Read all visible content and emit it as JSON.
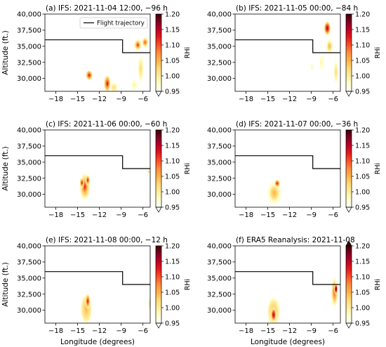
{
  "figure": {
    "xlabel": "Longitude (degrees)",
    "ylabel": "Altitude (ft.)",
    "colorbar_label": "RHi",
    "legend_label": "Flight trajectory"
  },
  "colors": {
    "trajectory": "#000000",
    "colormap": [
      "#ffffff",
      "#ffffcc",
      "#ffeda0",
      "#fed976",
      "#feb24c",
      "#fd8d3c",
      "#fc4e2a",
      "#e31a1c",
      "#bd0026",
      "#800026",
      "#3d0000"
    ]
  },
  "chart_data": [
    {
      "type": "heatmap",
      "title": "(a) IFS: 2021-11-04 12:00, −96 h",
      "xlim": [
        -19.5,
        -5
      ],
      "ylim": [
        28000,
        40000
      ],
      "xticks": [
        -18,
        -15,
        -12,
        -9,
        -6
      ],
      "yticks": [
        30000,
        32500,
        35000,
        37500,
        40000
      ],
      "colorbar": {
        "min": 0.95,
        "max": 1.2,
        "ticks": [
          0.95,
          1.0,
          1.05,
          1.1,
          1.15,
          1.2
        ],
        "extend": "min"
      },
      "legend": "Flight trajectory",
      "trajectory": {
        "x": [
          -19.5,
          -8.8,
          -8.8,
          -5
        ],
        "y": [
          36000,
          36000,
          34000,
          34000
        ]
      },
      "blobs": [
        {
          "x": -13.4,
          "y": 30500,
          "rx": 0.55,
          "ry": 900,
          "peak": 1.15
        },
        {
          "x": -10.9,
          "y": 29200,
          "rx": 0.55,
          "ry": 1500,
          "peak": 1.16
        },
        {
          "x": -10.0,
          "y": 28600,
          "rx": 0.7,
          "ry": 1000,
          "peak": 1.02
        },
        {
          "x": -6.7,
          "y": 35200,
          "rx": 0.6,
          "ry": 1000,
          "peak": 1.12
        },
        {
          "x": -5.7,
          "y": 35600,
          "rx": 0.5,
          "ry": 900,
          "peak": 1.1
        },
        {
          "x": -6.3,
          "y": 31500,
          "rx": 0.5,
          "ry": 2600,
          "peak": 1.02
        },
        {
          "x": -7.2,
          "y": 29000,
          "rx": 0.5,
          "ry": 1000,
          "peak": 1.0
        }
      ]
    },
    {
      "type": "heatmap",
      "title": "(b) IFS: 2021-11-05 00:00, −84 h",
      "xlim": [
        -19.5,
        -5
      ],
      "ylim": [
        28000,
        40000
      ],
      "xticks": [
        -18,
        -15,
        -12,
        -9,
        -6
      ],
      "yticks": [
        30000,
        32500,
        35000,
        37500,
        40000
      ],
      "colorbar": {
        "min": 0.95,
        "max": 1.2,
        "ticks": [
          0.95,
          1.0,
          1.05,
          1.1,
          1.15,
          1.2
        ],
        "extend": "min"
      },
      "trajectory": {
        "x": [
          -19.5,
          -8.8,
          -8.8,
          -5
        ],
        "y": [
          36000,
          36000,
          34000,
          34000
        ]
      },
      "blobs": [
        {
          "x": -6.8,
          "y": 37800,
          "rx": 0.55,
          "ry": 1300,
          "peak": 1.18
        },
        {
          "x": -6.5,
          "y": 35000,
          "rx": 0.55,
          "ry": 1300,
          "peak": 1.05
        },
        {
          "x": -7.6,
          "y": 32500,
          "rx": 0.4,
          "ry": 1400,
          "peak": 1.0
        },
        {
          "x": -5.6,
          "y": 31000,
          "rx": 0.4,
          "ry": 2200,
          "peak": 1.02
        },
        {
          "x": -8.9,
          "y": 31800,
          "rx": 0.25,
          "ry": 700,
          "peak": 1.0
        }
      ]
    },
    {
      "type": "heatmap",
      "title": "(c) IFS: 2021-11-06 00:00, −60 h",
      "xlim": [
        -19.5,
        -5
      ],
      "ylim": [
        28000,
        40000
      ],
      "xticks": [
        -18,
        -15,
        -12,
        -9,
        -6
      ],
      "yticks": [
        30000,
        32500,
        35000,
        37500,
        40000
      ],
      "colorbar": {
        "min": 0.95,
        "max": 1.2,
        "ticks": [
          0.95,
          1.0,
          1.05,
          1.1,
          1.15,
          1.2
        ],
        "extend": "min"
      },
      "trajectory": {
        "x": [
          -19.5,
          -8.8,
          -8.8,
          -5
        ],
        "y": [
          36000,
          36000,
          34000,
          34000
        ]
      },
      "blobs": [
        {
          "x": -14.0,
          "y": 31200,
          "rx": 0.85,
          "ry": 2400,
          "peak": 1.12
        },
        {
          "x": -14.4,
          "y": 31800,
          "rx": 0.35,
          "ry": 900,
          "peak": 1.16
        },
        {
          "x": -13.6,
          "y": 32200,
          "rx": 0.35,
          "ry": 900,
          "peak": 1.16
        },
        {
          "x": -5.2,
          "y": 33500,
          "rx": 0.25,
          "ry": 450,
          "peak": 1.04
        }
      ]
    },
    {
      "type": "heatmap",
      "title": "(d) IFS: 2021-11-07 00:00, −36 h",
      "xlim": [
        -19.5,
        -5
      ],
      "ylim": [
        28000,
        40000
      ],
      "xticks": [
        -18,
        -15,
        -12,
        -9,
        -6
      ],
      "yticks": [
        30000,
        32500,
        35000,
        37500,
        40000
      ],
      "colorbar": {
        "min": 0.95,
        "max": 1.2,
        "ticks": [
          0.95,
          1.0,
          1.05,
          1.1,
          1.15,
          1.2
        ],
        "extend": "min"
      },
      "trajectory": {
        "x": [
          -19.5,
          -8.8,
          -8.8,
          -5
        ],
        "y": [
          36000,
          36000,
          34000,
          34000
        ]
      },
      "blobs": [
        {
          "x": -14.1,
          "y": 30200,
          "rx": 1.1,
          "ry": 2000,
          "peak": 1.05
        },
        {
          "x": -13.7,
          "y": 31700,
          "rx": 0.45,
          "ry": 700,
          "peak": 1.16
        }
      ]
    },
    {
      "type": "heatmap",
      "title": "(e) IFS: 2021-11-08 00:00, −12 h",
      "xlim": [
        -19.5,
        -5
      ],
      "ylim": [
        28000,
        40000
      ],
      "xticks": [
        -18,
        -15,
        -12,
        -9,
        -6
      ],
      "yticks": [
        30000,
        32500,
        35000,
        37500,
        40000
      ],
      "colorbar": {
        "min": 0.95,
        "max": 1.2,
        "ticks": [
          0.95,
          1.0,
          1.05,
          1.1,
          1.15,
          1.2
        ],
        "extend": "min"
      },
      "trajectory": {
        "x": [
          -19.5,
          -8.8,
          -8.8,
          -5
        ],
        "y": [
          36000,
          36000,
          34000,
          34000
        ]
      },
      "blobs": [
        {
          "x": -13.8,
          "y": 30200,
          "rx": 0.9,
          "ry": 2600,
          "peak": 1.06
        },
        {
          "x": -13.6,
          "y": 31400,
          "rx": 0.4,
          "ry": 1300,
          "peak": 1.14
        },
        {
          "x": -5.1,
          "y": 31000,
          "rx": 0.2,
          "ry": 1300,
          "peak": 1.02
        }
      ]
    },
    {
      "type": "heatmap",
      "title": "(f) ERA5 Reanalysis: 2021-11-08",
      "xlim": [
        -19.5,
        -5
      ],
      "ylim": [
        28000,
        40000
      ],
      "xticks": [
        -18,
        -15,
        -12,
        -9,
        -6
      ],
      "yticks": [
        30000,
        32500,
        35000,
        37500,
        40000
      ],
      "colorbar": {
        "min": 0.95,
        "max": 1.2,
        "ticks": [
          0.95,
          1.0,
          1.05,
          1.1,
          1.15,
          1.2
        ],
        "extend": "both"
      },
      "trajectory": {
        "x": [
          -19.5,
          -8.8,
          -8.8,
          -5
        ],
        "y": [
          36000,
          36000,
          34000,
          34000
        ]
      },
      "blobs": [
        {
          "x": -14.2,
          "y": 29800,
          "rx": 1.0,
          "ry": 2500,
          "peak": 1.08
        },
        {
          "x": -14.2,
          "y": 29300,
          "rx": 0.45,
          "ry": 1300,
          "peak": 1.18
        },
        {
          "x": -5.8,
          "y": 32800,
          "rx": 0.55,
          "ry": 2600,
          "peak": 1.1
        },
        {
          "x": -5.6,
          "y": 33300,
          "rx": 0.3,
          "ry": 1000,
          "peak": 1.2
        }
      ]
    }
  ]
}
